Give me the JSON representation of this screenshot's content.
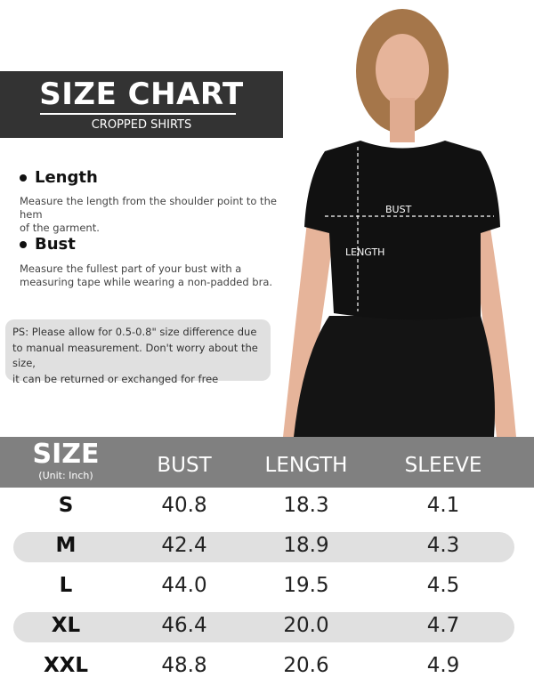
{
  "header": {
    "title": "SIZE CHART",
    "subtitle": "CROPPED SHIRTS"
  },
  "guides": [
    {
      "heading": "Length",
      "lines": [
        "Measure the length from the shoulder point to the hem",
        "of the garment."
      ]
    },
    {
      "heading": "Bust",
      "lines": [
        "Measure the fullest part of your bust with a",
        "measuring tape while wearing a non-padded bra."
      ]
    }
  ],
  "note": {
    "lines": [
      "PS: Please allow for 0.5-0.8\" size difference due",
      "to manual measurement. Don't worry about the size,",
      "it can be returned or exchanged for free"
    ]
  },
  "figure": {
    "bust_label": "BUST",
    "length_label": "LENGTH",
    "shirt_color": "#111111",
    "skin_color": "#e6b49a",
    "hair_color": "#a5764a"
  },
  "table": {
    "size_header": "SIZE",
    "unit": "(Unit: Inch)",
    "columns": [
      "BUST",
      "LENGTH",
      "SLEEVE"
    ],
    "rows": [
      {
        "size": "S",
        "values": [
          "40.8",
          "18.3",
          "4.1"
        ]
      },
      {
        "size": "M",
        "values": [
          "42.4",
          "18.9",
          "4.3"
        ]
      },
      {
        "size": "L",
        "values": [
          "44.0",
          "19.5",
          "4.5"
        ]
      },
      {
        "size": "XL",
        "values": [
          "46.4",
          "20.0",
          "4.7"
        ]
      },
      {
        "size": "XXL",
        "values": [
          "48.8",
          "20.6",
          "4.9"
        ]
      }
    ]
  }
}
